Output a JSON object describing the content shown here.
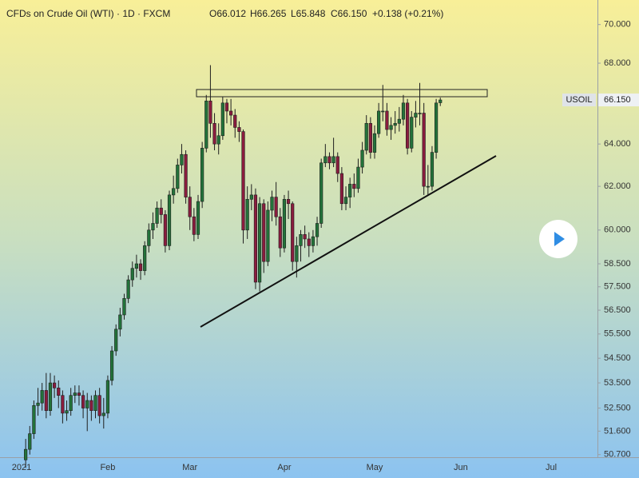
{
  "chart_data": {
    "type": "candlestick",
    "title": "CFDs on Crude Oil (WTI) · 1D · FXCM",
    "legend": {
      "open": "O66.012",
      "high": "H66.265",
      "low": "L65.848",
      "close": "C66.150",
      "change": "+0.138 (+0.21%)"
    },
    "price_tag": {
      "symbol": "USOIL",
      "label": "66.150"
    },
    "log_scale": true,
    "up_color": "#23733a",
    "down_color": "#8a1c3e",
    "ylim": [
      50.6,
      71.3
    ],
    "yticks": [
      {
        "value": 70,
        "label": "70.000"
      },
      {
        "value": 68,
        "label": "68.000"
      },
      {
        "value": 66,
        "label": "66.000"
      },
      {
        "value": 64,
        "label": "64.000"
      },
      {
        "value": 62,
        "label": "62.000"
      },
      {
        "value": 60,
        "label": "60.000"
      },
      {
        "value": 58.5,
        "label": "58.500"
      },
      {
        "value": 57.5,
        "label": "57.500"
      },
      {
        "value": 56.5,
        "label": "56.500"
      },
      {
        "value": 55.5,
        "label": "55.500"
      },
      {
        "value": 54.5,
        "label": "54.500"
      },
      {
        "value": 53.5,
        "label": "53.500"
      },
      {
        "value": 52.5,
        "label": "52.500"
      },
      {
        "value": 51.6,
        "label": "51.600"
      },
      {
        "value": 50.7,
        "label": "50.700"
      }
    ],
    "categories": [
      "2021",
      null,
      null,
      null,
      null,
      null,
      null,
      null,
      null,
      null,
      null,
      null,
      null,
      null,
      null,
      null,
      null,
      null,
      null,
      null,
      null,
      "Feb",
      null,
      null,
      null,
      null,
      null,
      null,
      null,
      null,
      null,
      null,
      null,
      null,
      null,
      null,
      null,
      null,
      null,
      null,
      null,
      "Mar",
      null,
      null,
      null,
      null,
      null,
      null,
      null,
      null,
      null,
      null,
      null,
      null,
      null,
      null,
      null,
      null,
      null,
      null,
      null,
      null,
      null,
      null,
      "Apr",
      null,
      null,
      null,
      null,
      null,
      null,
      null,
      null,
      null,
      null,
      null,
      null,
      null,
      null,
      null,
      null,
      null,
      null,
      null,
      null,
      null,
      "May",
      null,
      null,
      null,
      null,
      null,
      null,
      null,
      null,
      null,
      null,
      null,
      null,
      null,
      null,
      null,
      null,
      null,
      null,
      null,
      null,
      "Jun",
      null,
      null,
      null,
      null,
      null,
      null,
      null,
      null,
      null,
      null,
      null,
      null,
      null,
      null,
      null,
      null,
      null,
      null,
      null,
      null,
      null,
      "Jul"
    ],
    "open": [
      null,
      50.5,
      50.9,
      51.5,
      52.6,
      52.7,
      53.2,
      52.4,
      53.5,
      53.3,
      53.0,
      52.3,
      52.4,
      53.0,
      53.1,
      53.0,
      52.5,
      52.8,
      52.4,
      53.0,
      52.2,
      52.3,
      53.6,
      54.8,
      55.7,
      56.3,
      57.0,
      57.8,
      58.3,
      58.5,
      58.2,
      59.3,
      60.0,
      60.3,
      61.0,
      60.7,
      59.3,
      61.6,
      61.9,
      63.0,
      63.5,
      61.5,
      60.6,
      59.8,
      61.3,
      63.8,
      66.1,
      65.0,
      64.0,
      64.4,
      66.0,
      65.6,
      65.4,
      64.8,
      64.6,
      60.0,
      61.4,
      61.6,
      57.7,
      61.2,
      58.6,
      60.9,
      61.5,
      60.6,
      59.2,
      61.4,
      61.2,
      58.6,
      59.3,
      59.8,
      59.6,
      59.3,
      59.7,
      60.3,
      63.1,
      63.4,
      63.1,
      63.4,
      62.6,
      61.2,
      61.5,
      62.1,
      61.9,
      62.9,
      63.7,
      65.0,
      63.6,
      64.5,
      65.6,
      65.6,
      64.7,
      64.9,
      65.0,
      65.2,
      66.0,
      63.8,
      65.3,
      65.5,
      65.5,
      62.0,
      62.0,
      63.6,
      66.012,
      null,
      null,
      null,
      null,
      null,
      null,
      null,
      null,
      null,
      null,
      null,
      null,
      null,
      null,
      null,
      null,
      null,
      null,
      null,
      null,
      null,
      null,
      null,
      null,
      null,
      null,
      null
    ],
    "high": [
      null,
      51.3,
      51.8,
      52.8,
      53.3,
      53.5,
      53.9,
      53.9,
      53.8,
      53.6,
      53.2,
      52.8,
      53.3,
      53.4,
      53.4,
      53.2,
      53.1,
      53.0,
      53.2,
      53.3,
      52.9,
      53.8,
      55.0,
      55.9,
      56.6,
      57.2,
      58.0,
      58.6,
      58.9,
      58.7,
      59.5,
      60.3,
      60.8,
      61.3,
      61.4,
      60.9,
      61.8,
      62.5,
      63.3,
      64.0,
      63.7,
      62.0,
      61.0,
      61.6,
      64.1,
      66.4,
      67.9,
      65.5,
      65.0,
      66.3,
      66.2,
      66.2,
      65.7,
      65.1,
      64.7,
      62.0,
      62.1,
      61.9,
      61.5,
      61.4,
      61.3,
      61.8,
      62.2,
      61.0,
      61.6,
      61.8,
      61.3,
      59.7,
      60.0,
      60.2,
      59.9,
      60.0,
      60.6,
      63.3,
      64.0,
      63.6,
      64.3,
      63.6,
      62.9,
      62.0,
      62.4,
      62.6,
      63.3,
      64.1,
      65.4,
      65.3,
      64.9,
      66.0,
      66.9,
      66.0,
      65.3,
      65.6,
      65.8,
      66.4,
      66.2,
      65.6,
      66.1,
      67.0,
      66.0,
      63.0,
      63.9,
      66.2,
      66.265,
      null,
      null,
      null,
      null,
      null,
      null,
      null,
      null,
      null,
      null,
      null,
      null,
      null,
      null,
      null,
      null,
      null,
      null,
      null,
      null,
      null,
      null,
      null,
      null,
      null,
      null,
      null
    ],
    "low": [
      null,
      50.2,
      50.7,
      51.3,
      52.2,
      52.4,
      52.1,
      52.2,
      52.9,
      52.5,
      51.9,
      52.0,
      52.2,
      52.7,
      52.6,
      52.1,
      51.6,
      52.0,
      52.1,
      51.9,
      51.7,
      52.1,
      53.4,
      54.6,
      55.4,
      56.1,
      56.8,
      57.5,
      57.9,
      57.8,
      58.0,
      59.0,
      59.6,
      60.1,
      60.3,
      59.0,
      59.1,
      61.2,
      61.7,
      62.6,
      61.2,
      60.0,
      59.5,
      59.6,
      61.0,
      63.6,
      64.3,
      63.7,
      63.5,
      64.2,
      65.0,
      64.9,
      64.3,
      64.1,
      59.4,
      59.6,
      60.9,
      57.4,
      57.3,
      58.1,
      58.4,
      60.4,
      60.2,
      58.8,
      59.0,
      60.5,
      58.2,
      57.9,
      58.6,
      59.2,
      58.8,
      59.0,
      59.3,
      60.1,
      62.9,
      62.8,
      62.9,
      62.2,
      60.9,
      60.9,
      61.0,
      61.5,
      61.7,
      62.6,
      63.5,
      63.3,
      63.3,
      64.3,
      65.1,
      64.4,
      64.2,
      64.5,
      64.6,
      64.9,
      63.5,
      63.6,
      64.8,
      64.9,
      61.6,
      61.6,
      61.8,
      63.3,
      65.848,
      null,
      null,
      null,
      null,
      null,
      null,
      null,
      null,
      null,
      null,
      null,
      null,
      null,
      null,
      null,
      null,
      null,
      null,
      null,
      null,
      null,
      null,
      null,
      null,
      null,
      null,
      null
    ],
    "close": [
      null,
      50.9,
      51.5,
      52.6,
      52.7,
      53.2,
      52.4,
      53.5,
      53.3,
      53.0,
      52.3,
      52.4,
      53.0,
      53.1,
      53.0,
      52.5,
      52.8,
      52.4,
      53.0,
      52.2,
      52.3,
      53.6,
      54.8,
      55.7,
      56.3,
      57.0,
      57.8,
      58.3,
      58.5,
      58.2,
      59.3,
      60.0,
      60.3,
      61.0,
      60.7,
      59.3,
      61.6,
      61.9,
      63.0,
      63.5,
      61.5,
      60.6,
      59.8,
      61.3,
      63.8,
      66.1,
      65.0,
      64.0,
      64.4,
      66.0,
      65.6,
      65.4,
      64.8,
      64.6,
      60.0,
      61.4,
      61.6,
      57.7,
      61.2,
      58.6,
      60.9,
      61.5,
      60.6,
      59.2,
      61.4,
      61.2,
      58.6,
      59.3,
      59.8,
      59.6,
      59.3,
      59.7,
      60.3,
      63.1,
      63.4,
      63.1,
      63.4,
      62.6,
      61.2,
      61.5,
      62.1,
      61.9,
      62.9,
      63.7,
      65.0,
      63.6,
      64.5,
      65.6,
      65.6,
      64.7,
      64.9,
      65.0,
      65.2,
      66.0,
      63.8,
      65.3,
      65.5,
      65.5,
      62.0,
      62.0,
      63.6,
      66.0,
      66.15,
      null,
      null,
      null,
      null,
      null,
      null,
      null,
      null,
      null,
      null,
      null,
      null,
      null,
      null,
      null,
      null,
      null,
      null,
      null,
      null,
      null,
      null,
      null,
      null,
      null,
      null,
      null
    ]
  }
}
